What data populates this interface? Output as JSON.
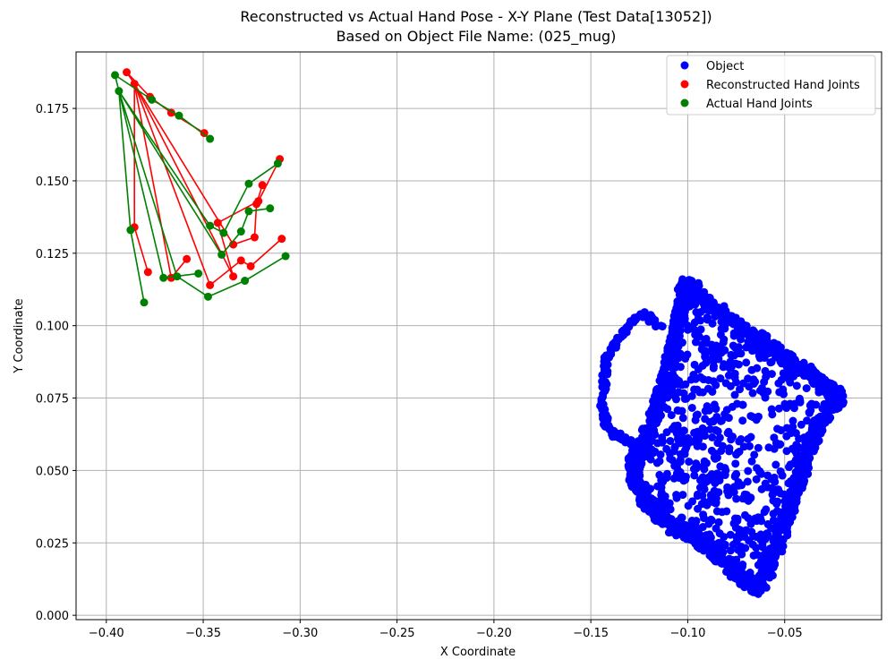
{
  "chart_data": {
    "type": "scatter",
    "title": "Reconstructed vs Actual Hand Pose - X-Y Plane (Test Data[13052])",
    "subtitle": "Based on Object File Name: (025_mug)",
    "xlabel": "X Coordinate",
    "ylabel": "Y Coordinate",
    "xlim": [
      -0.4156,
      0.0
    ],
    "ylim": [
      -0.0015,
      0.1945
    ],
    "x_ticks": [
      -0.4,
      -0.35,
      -0.3,
      -0.25,
      -0.2,
      -0.15,
      -0.1,
      -0.05
    ],
    "x_tick_labels": [
      "−0.40",
      "−0.35",
      "−0.30",
      "−0.25",
      "−0.20",
      "−0.15",
      "−0.10",
      "−0.05"
    ],
    "y_ticks": [
      0.0,
      0.025,
      0.05,
      0.075,
      0.1,
      0.125,
      0.15,
      0.175
    ],
    "y_tick_labels": [
      "0.000",
      "0.025",
      "0.050",
      "0.075",
      "0.100",
      "0.125",
      "0.150",
      "0.175"
    ],
    "grid": true,
    "legend_position": "top-right",
    "series": [
      {
        "name": "Object",
        "color": "#0000ff",
        "style": "points",
        "description_shape": "mug point cloud",
        "ring": [
          [
            -0.1015,
            0.1155
          ],
          [
            -0.09,
            0.108
          ],
          [
            -0.078,
            0.102
          ],
          [
            -0.066,
            0.097
          ],
          [
            -0.056,
            0.092
          ],
          [
            -0.046,
            0.087
          ],
          [
            -0.034,
            0.082
          ],
          [
            -0.026,
            0.078
          ],
          [
            -0.021,
            0.075
          ],
          [
            -0.026,
            0.072
          ],
          [
            -0.034,
            0.064
          ],
          [
            -0.038,
            0.056
          ],
          [
            -0.042,
            0.048
          ],
          [
            -0.046,
            0.04
          ],
          [
            -0.05,
            0.032
          ],
          [
            -0.054,
            0.024
          ],
          [
            -0.058,
            0.016
          ],
          [
            -0.064,
            0.009
          ],
          [
            -0.072,
            0.013
          ],
          [
            -0.08,
            0.018
          ],
          [
            -0.088,
            0.023
          ],
          [
            -0.097,
            0.027
          ],
          [
            -0.106,
            0.03
          ],
          [
            -0.114,
            0.034
          ],
          [
            -0.122,
            0.04
          ],
          [
            -0.127,
            0.046
          ],
          [
            -0.128,
            0.052
          ],
          [
            -0.126,
            0.056
          ],
          [
            -0.122,
            0.06
          ],
          [
            -0.118,
            0.068
          ],
          [
            -0.114,
            0.076
          ],
          [
            -0.11,
            0.086
          ],
          [
            -0.106,
            0.097
          ],
          [
            -0.103,
            0.107
          ]
        ],
        "handle": [
          [
            -0.114,
            0.1
          ],
          [
            -0.122,
            0.104
          ],
          [
            -0.128,
            0.102
          ],
          [
            -0.134,
            0.097
          ],
          [
            -0.138,
            0.093
          ],
          [
            -0.142,
            0.088
          ],
          [
            -0.143,
            0.08
          ],
          [
            -0.144,
            0.073
          ],
          [
            -0.142,
            0.066
          ],
          [
            -0.139,
            0.063
          ],
          [
            -0.134,
            0.061
          ],
          [
            -0.129,
            0.059
          ],
          [
            -0.12,
            0.06
          ]
        ]
      },
      {
        "name": "Reconstructed Hand Joints",
        "color": "#ff0000",
        "style": "points-and-lines",
        "points": [
          [
            -0.3895,
            0.1875
          ],
          [
            -0.3775,
            0.179
          ],
          [
            -0.3665,
            0.1735
          ],
          [
            -0.3495,
            0.1665
          ],
          [
            -0.3855,
            0.1835
          ],
          [
            -0.3855,
            0.134
          ],
          [
            -0.3785,
            0.1185
          ],
          [
            -0.3665,
            0.1165
          ],
          [
            -0.3585,
            0.123
          ],
          [
            -0.3465,
            0.114
          ],
          [
            -0.3305,
            0.1225
          ],
          [
            -0.3255,
            0.1205
          ],
          [
            -0.3095,
            0.13
          ],
          [
            -0.3345,
            0.128
          ],
          [
            -0.3235,
            0.1305
          ],
          [
            -0.3225,
            0.142
          ],
          [
            -0.3195,
            0.1485
          ],
          [
            -0.3345,
            0.117
          ],
          [
            -0.3425,
            0.1355
          ],
          [
            -0.3215,
            0.143
          ],
          [
            -0.3105,
            0.1575
          ]
        ],
        "edges": [
          [
            0,
            1
          ],
          [
            1,
            2
          ],
          [
            2,
            3
          ],
          [
            0,
            4
          ],
          [
            4,
            5
          ],
          [
            5,
            6
          ],
          [
            4,
            7
          ],
          [
            7,
            8
          ],
          [
            4,
            9
          ],
          [
            9,
            10
          ],
          [
            10,
            11
          ],
          [
            11,
            12
          ],
          [
            4,
            13
          ],
          [
            13,
            14
          ],
          [
            14,
            15
          ],
          [
            15,
            16
          ],
          [
            4,
            17
          ],
          [
            17,
            18
          ],
          [
            18,
            19
          ],
          [
            19,
            20
          ]
        ]
      },
      {
        "name": "Actual Hand Joints",
        "color": "#008000",
        "style": "points-and-lines",
        "points": [
          [
            -0.3955,
            0.1865
          ],
          [
            -0.3765,
            0.178
          ],
          [
            -0.3625,
            0.1725
          ],
          [
            -0.3465,
            0.1645
          ],
          [
            -0.3935,
            0.181
          ],
          [
            -0.3875,
            0.133
          ],
          [
            -0.3805,
            0.108
          ],
          [
            -0.3705,
            0.1165
          ],
          [
            -0.3525,
            0.118
          ],
          [
            -0.3635,
            0.117
          ],
          [
            -0.3475,
            0.11
          ],
          [
            -0.3285,
            0.1155
          ],
          [
            -0.3075,
            0.124
          ],
          [
            -0.3405,
            0.1245
          ],
          [
            -0.3305,
            0.1325
          ],
          [
            -0.3265,
            0.1395
          ],
          [
            -0.3155,
            0.1405
          ],
          [
            -0.3465,
            0.1345
          ],
          [
            -0.3395,
            0.132
          ],
          [
            -0.3265,
            0.149
          ],
          [
            -0.3115,
            0.156
          ]
        ],
        "edges": [
          [
            0,
            1
          ],
          [
            1,
            2
          ],
          [
            2,
            3
          ],
          [
            0,
            4
          ],
          [
            4,
            5
          ],
          [
            5,
            6
          ],
          [
            4,
            7
          ],
          [
            7,
            8
          ],
          [
            4,
            9
          ],
          [
            9,
            10
          ],
          [
            10,
            11
          ],
          [
            11,
            12
          ],
          [
            4,
            13
          ],
          [
            13,
            14
          ],
          [
            14,
            15
          ],
          [
            15,
            16
          ],
          [
            4,
            17
          ],
          [
            17,
            18
          ],
          [
            18,
            19
          ],
          [
            19,
            20
          ]
        ]
      }
    ]
  }
}
